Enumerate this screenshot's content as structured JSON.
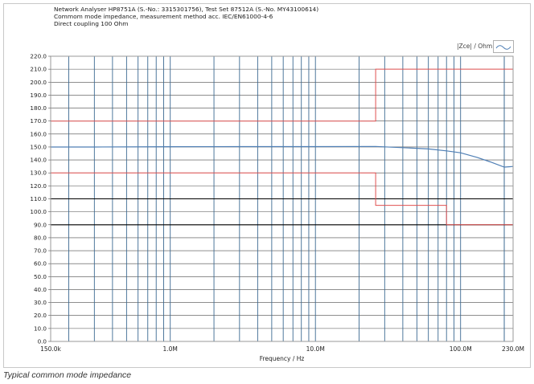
{
  "header": {
    "line1": "Network Analyser HP8751A (S.-No.: 3315301756), Test Set 87512A (S.-No. MY43100614)",
    "line2": "Commom mode impedance, measurement method acc. IEC/EN61000-4-6",
    "line3": "Direct coupling 100 Ohm"
  },
  "caption": "Typical common mode impedance",
  "chart_data": {
    "type": "line",
    "xscale": "log",
    "xlabel": "Frequency / Hz",
    "ylabel": "",
    "xlim": [
      150000,
      230000000
    ],
    "ylim": [
      0,
      220
    ],
    "grid": true,
    "xtick_labels": [
      {
        "x": 150000,
        "label": "150.0k"
      },
      {
        "x": 1000000,
        "label": "1.0M"
      },
      {
        "x": 10000000,
        "label": "10.0M"
      },
      {
        "x": 100000000,
        "label": "100.0M"
      },
      {
        "x": 230000000,
        "label": "230.0M"
      }
    ],
    "yticks": [
      0,
      10,
      20,
      30,
      40,
      50,
      60,
      70,
      80,
      90,
      100,
      110,
      120,
      130,
      140,
      150,
      160,
      170,
      180,
      190,
      200,
      210,
      220
    ],
    "ytick_labels": [
      "0.0",
      "10.0",
      "20.0",
      "30.0",
      "40.0",
      "50.0",
      "60.0",
      "70.0",
      "80.0",
      "90.0",
      "100.0",
      "110.0",
      "120.0",
      "130.0",
      "140.0",
      "150.0",
      "160.0",
      "170.0",
      "180.0",
      "190.0",
      "200.0",
      "210.0",
      "220.0"
    ],
    "legend": {
      "label": "|Zce| / Ohm",
      "position": "top-right"
    },
    "series": [
      {
        "name": "|Zce| / Ohm",
        "color": "#4f7fb5",
        "x": [
          150000,
          300000,
          1000000,
          3000000,
          10000000,
          26000000,
          40000000,
          60000000,
          80000000,
          100000000,
          130000000,
          160000000,
          200000000,
          230000000
        ],
        "y": [
          150,
          150,
          150.2,
          150.3,
          150.3,
          150.4,
          149.5,
          148.5,
          147,
          145.5,
          142,
          138.5,
          134.5,
          135
        ]
      }
    ],
    "limit_lines": [
      {
        "name": "upper tolerance",
        "color": "#e05050",
        "x": [
          150000,
          26000000,
          26000000,
          230000000
        ],
        "y": [
          170,
          170,
          210,
          210
        ]
      },
      {
        "name": "lower tolerance",
        "color": "#e05050",
        "x": [
          150000,
          26000000,
          26000000,
          80000000,
          80000000,
          230000000
        ],
        "y": [
          130,
          130,
          105,
          105,
          90,
          90
        ]
      }
    ],
    "reference_lines": [
      {
        "y": 110,
        "color": "#000000"
      },
      {
        "y": 90,
        "color": "#000000"
      }
    ]
  }
}
